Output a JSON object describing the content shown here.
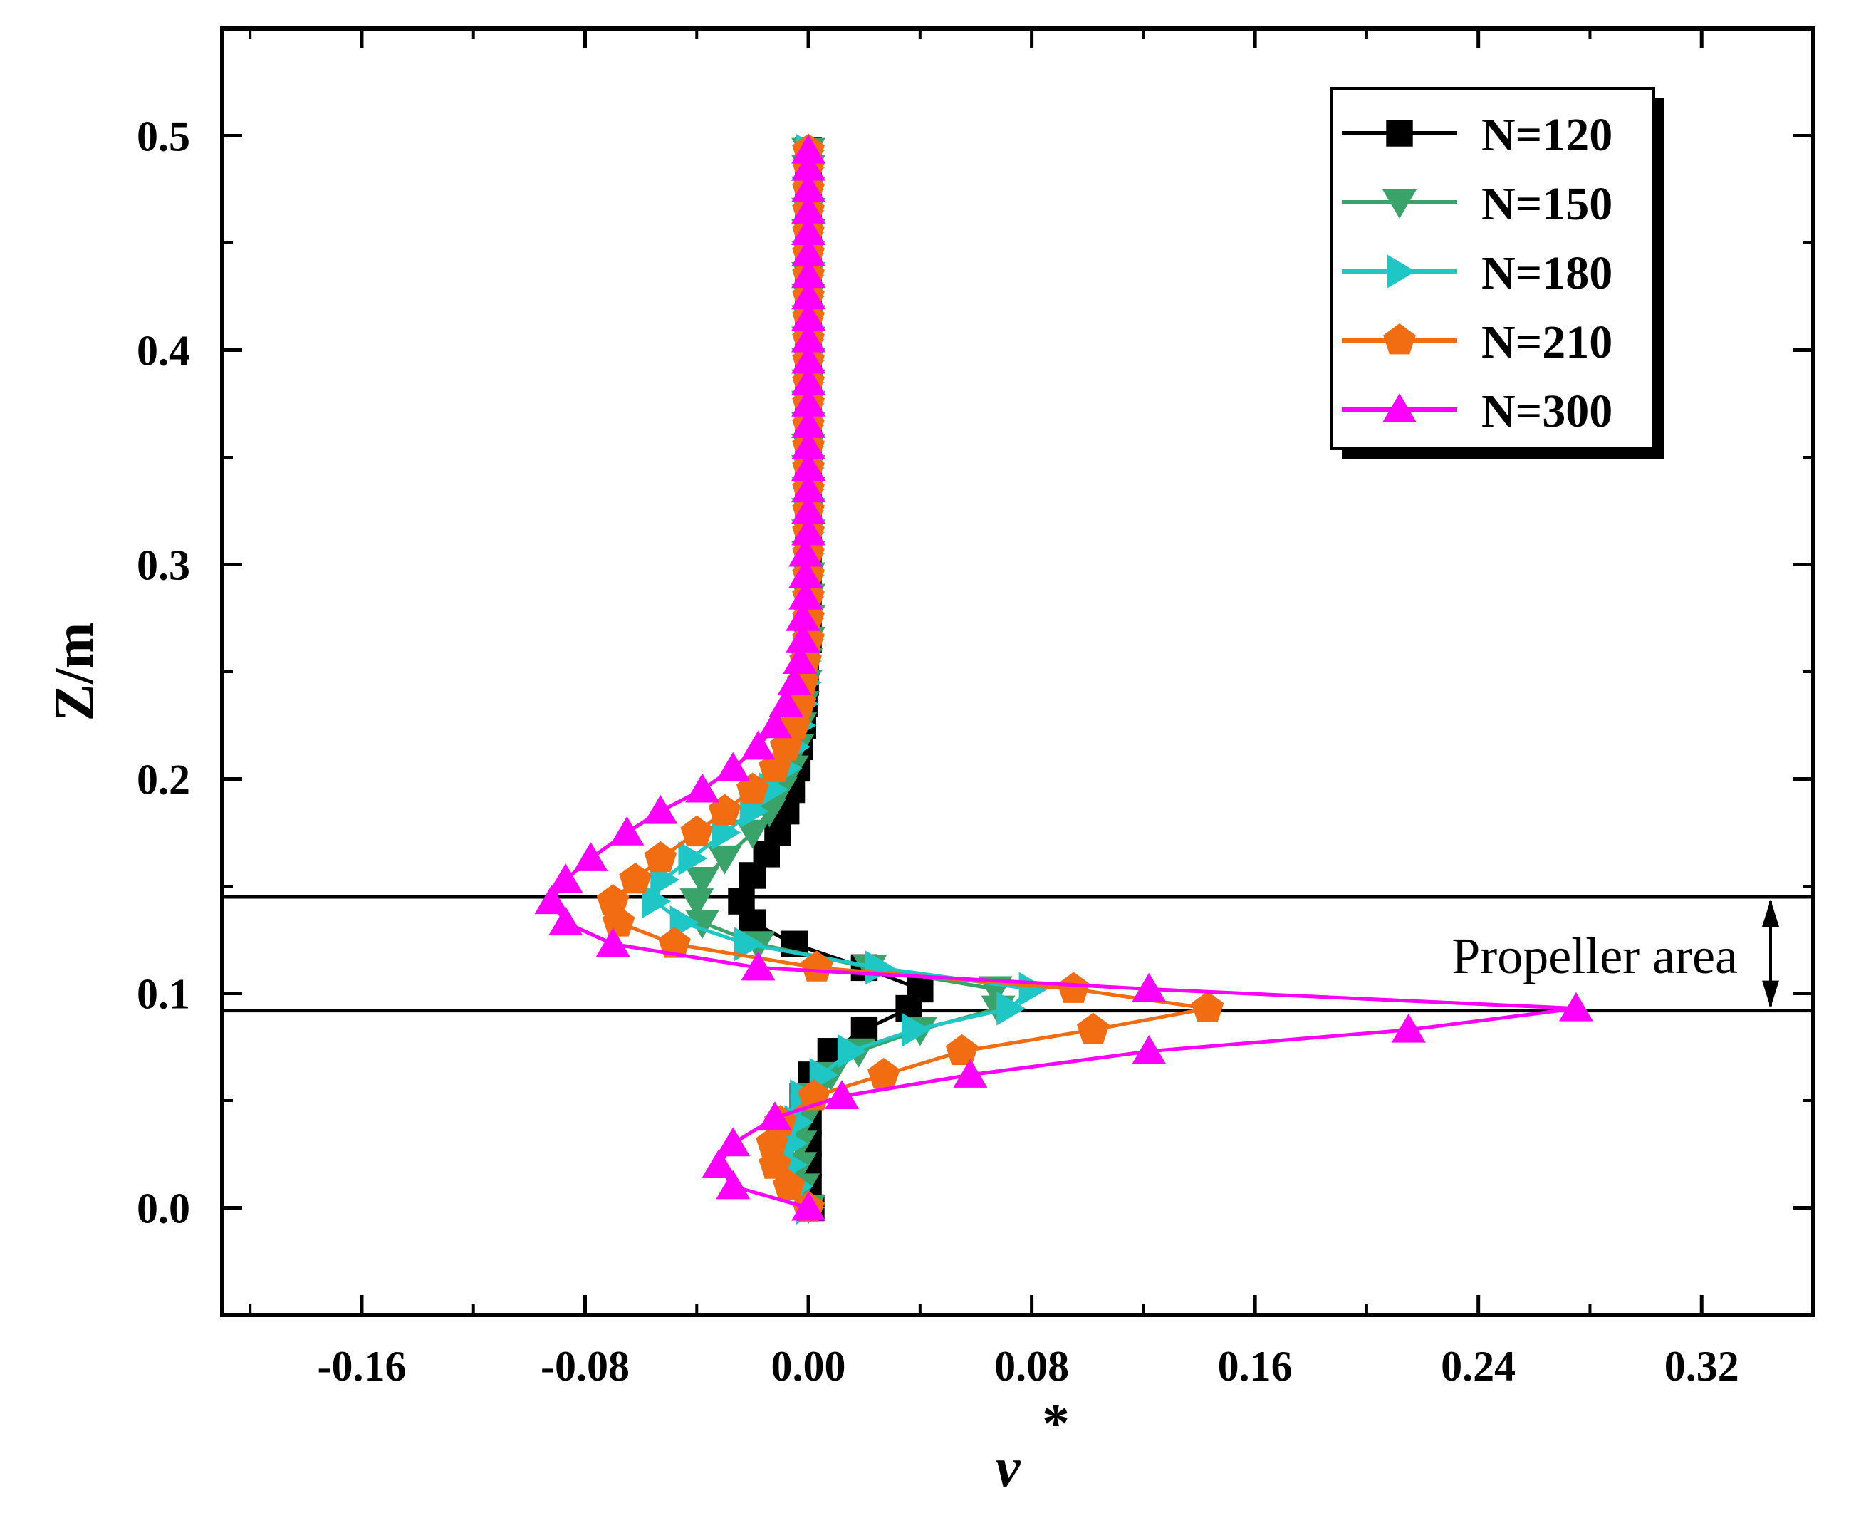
{
  "chart_data": {
    "type": "line",
    "title": "",
    "xlabel": "ν",
    "xlabel_superscript": "*",
    "ylabel": "Z/m",
    "xlim": [
      -0.21,
      0.36
    ],
    "ylim": [
      -0.05,
      0.55
    ],
    "xticks": [
      -0.16,
      -0.08,
      0.0,
      0.08,
      0.16,
      0.24,
      0.32
    ],
    "xtick_labels": [
      "-0.16",
      "-0.08",
      "0.00",
      "0.08",
      "0.16",
      "0.24",
      "0.32"
    ],
    "yticks": [
      0.0,
      0.1,
      0.2,
      0.3,
      0.4,
      0.5
    ],
    "ytick_labels": [
      "0.0",
      "0.1",
      "0.2",
      "0.3",
      "0.4",
      "0.5"
    ],
    "grid": false,
    "legend_position": "top-right",
    "annotation": {
      "label": "Propeller area",
      "z_top": 0.145,
      "z_bottom": 0.092
    },
    "series": [
      {
        "name": "N=120",
        "color": "#000000",
        "marker": "square",
        "points": [
          [
            0.001,
            0.0
          ],
          [
            0.0,
            0.01
          ],
          [
            0.0,
            0.02
          ],
          [
            0.0,
            0.03
          ],
          [
            0.0,
            0.04
          ],
          [
            -0.002,
            0.052
          ],
          [
            0.001,
            0.062
          ],
          [
            0.008,
            0.073
          ],
          [
            0.02,
            0.083
          ],
          [
            0.036,
            0.093
          ],
          [
            0.04,
            0.102
          ],
          [
            0.02,
            0.112
          ],
          [
            -0.005,
            0.123
          ],
          [
            -0.02,
            0.133
          ],
          [
            -0.024,
            0.143
          ],
          [
            -0.02,
            0.155
          ],
          [
            -0.015,
            0.165
          ],
          [
            -0.011,
            0.175
          ],
          [
            -0.008,
            0.185
          ],
          [
            -0.006,
            0.195
          ],
          [
            -0.004,
            0.205
          ],
          [
            -0.003,
            0.215
          ],
          [
            -0.002,
            0.225
          ],
          [
            -0.0015,
            0.235
          ],
          [
            -0.001,
            0.245
          ],
          [
            -0.001,
            0.255
          ],
          [
            0.0,
            0.265
          ],
          [
            0.0,
            0.275
          ],
          [
            0.0,
            0.285
          ],
          [
            0.0,
            0.295
          ],
          [
            0.0,
            0.305
          ],
          [
            0.0,
            0.315
          ],
          [
            0.0,
            0.325
          ],
          [
            0.0,
            0.335
          ],
          [
            0.0,
            0.345
          ],
          [
            0.0,
            0.355
          ],
          [
            0.0,
            0.365
          ],
          [
            0.0,
            0.375
          ],
          [
            0.0,
            0.385
          ],
          [
            0.0,
            0.395
          ],
          [
            0.0,
            0.405
          ],
          [
            0.0,
            0.415
          ],
          [
            0.0,
            0.425
          ],
          [
            0.0,
            0.435
          ],
          [
            0.0,
            0.445
          ],
          [
            0.0,
            0.455
          ],
          [
            0.0,
            0.465
          ],
          [
            0.0,
            0.475
          ],
          [
            0.0,
            0.485
          ],
          [
            0.0,
            0.493
          ]
        ]
      },
      {
        "name": "N=150",
        "color": "#3aa36a",
        "marker": "triangle-down",
        "points": [
          [
            0.0,
            0.0
          ],
          [
            -0.002,
            0.01
          ],
          [
            -0.003,
            0.02
          ],
          [
            -0.003,
            0.03
          ],
          [
            -0.002,
            0.04
          ],
          [
            0.002,
            0.052
          ],
          [
            0.008,
            0.062
          ],
          [
            0.018,
            0.073
          ],
          [
            0.04,
            0.083
          ],
          [
            0.068,
            0.093
          ],
          [
            0.067,
            0.102
          ],
          [
            0.022,
            0.112
          ],
          [
            -0.018,
            0.123
          ],
          [
            -0.038,
            0.133
          ],
          [
            -0.04,
            0.143
          ],
          [
            -0.038,
            0.153
          ],
          [
            -0.03,
            0.163
          ],
          [
            -0.02,
            0.175
          ],
          [
            -0.014,
            0.185
          ],
          [
            -0.01,
            0.195
          ],
          [
            -0.006,
            0.205
          ],
          [
            -0.004,
            0.215
          ],
          [
            -0.003,
            0.225
          ],
          [
            -0.002,
            0.235
          ],
          [
            -0.001,
            0.245
          ],
          [
            -0.001,
            0.255
          ],
          [
            0.0,
            0.265
          ],
          [
            0.0,
            0.275
          ],
          [
            0.0,
            0.285
          ],
          [
            0.0,
            0.295
          ],
          [
            0.0,
            0.305
          ],
          [
            0.0,
            0.315
          ],
          [
            0.0,
            0.325
          ],
          [
            0.0,
            0.335
          ],
          [
            0.0,
            0.345
          ],
          [
            0.0,
            0.355
          ],
          [
            0.0,
            0.365
          ],
          [
            0.0,
            0.375
          ],
          [
            0.0,
            0.385
          ],
          [
            0.0,
            0.395
          ],
          [
            0.0,
            0.405
          ],
          [
            0.0,
            0.415
          ],
          [
            0.0,
            0.425
          ],
          [
            0.0,
            0.435
          ],
          [
            0.0,
            0.445
          ],
          [
            0.0,
            0.455
          ],
          [
            0.0,
            0.465
          ],
          [
            0.0,
            0.475
          ],
          [
            0.0,
            0.485
          ],
          [
            0.0,
            0.493
          ]
        ]
      },
      {
        "name": "N=180",
        "color": "#1fc6c6",
        "marker": "triangle-right",
        "points": [
          [
            0.0,
            0.0
          ],
          [
            -0.004,
            0.01
          ],
          [
            -0.006,
            0.02
          ],
          [
            -0.006,
            0.03
          ],
          [
            -0.004,
            0.04
          ],
          [
            -0.002,
            0.052
          ],
          [
            0.005,
            0.062
          ],
          [
            0.015,
            0.073
          ],
          [
            0.038,
            0.083
          ],
          [
            0.072,
            0.093
          ],
          [
            0.08,
            0.102
          ],
          [
            0.025,
            0.112
          ],
          [
            -0.022,
            0.123
          ],
          [
            -0.045,
            0.133
          ],
          [
            -0.055,
            0.143
          ],
          [
            -0.052,
            0.153
          ],
          [
            -0.042,
            0.163
          ],
          [
            -0.03,
            0.175
          ],
          [
            -0.02,
            0.185
          ],
          [
            -0.013,
            0.195
          ],
          [
            -0.008,
            0.205
          ],
          [
            -0.005,
            0.215
          ],
          [
            -0.003,
            0.225
          ],
          [
            -0.002,
            0.235
          ],
          [
            -0.001,
            0.245
          ],
          [
            -0.001,
            0.255
          ],
          [
            0.0,
            0.265
          ],
          [
            0.0,
            0.275
          ],
          [
            0.0,
            0.285
          ],
          [
            0.0,
            0.295
          ],
          [
            0.0,
            0.305
          ],
          [
            0.0,
            0.315
          ],
          [
            0.0,
            0.325
          ],
          [
            0.0,
            0.335
          ],
          [
            0.0,
            0.345
          ],
          [
            0.0,
            0.355
          ],
          [
            0.0,
            0.365
          ],
          [
            0.0,
            0.375
          ],
          [
            0.0,
            0.385
          ],
          [
            0.0,
            0.395
          ],
          [
            0.0,
            0.405
          ],
          [
            0.0,
            0.415
          ],
          [
            0.0,
            0.425
          ],
          [
            0.0,
            0.435
          ],
          [
            0.0,
            0.445
          ],
          [
            0.0,
            0.455
          ],
          [
            0.0,
            0.465
          ],
          [
            0.0,
            0.475
          ],
          [
            0.0,
            0.485
          ],
          [
            0.0,
            0.493
          ]
        ]
      },
      {
        "name": "N=210",
        "color": "#f26c12",
        "marker": "pentagon",
        "points": [
          [
            0.0,
            0.0
          ],
          [
            -0.007,
            0.01
          ],
          [
            -0.012,
            0.02
          ],
          [
            -0.013,
            0.03
          ],
          [
            -0.01,
            0.04
          ],
          [
            0.002,
            0.052
          ],
          [
            0.027,
            0.062
          ],
          [
            0.055,
            0.073
          ],
          [
            0.102,
            0.083
          ],
          [
            0.143,
            0.093
          ],
          [
            0.095,
            0.102
          ],
          [
            0.003,
            0.112
          ],
          [
            -0.048,
            0.123
          ],
          [
            -0.068,
            0.133
          ],
          [
            -0.07,
            0.143
          ],
          [
            -0.062,
            0.153
          ],
          [
            -0.053,
            0.163
          ],
          [
            -0.04,
            0.175
          ],
          [
            -0.03,
            0.185
          ],
          [
            -0.02,
            0.195
          ],
          [
            -0.012,
            0.205
          ],
          [
            -0.008,
            0.215
          ],
          [
            -0.005,
            0.225
          ],
          [
            -0.003,
            0.235
          ],
          [
            -0.002,
            0.245
          ],
          [
            -0.001,
            0.255
          ],
          [
            0.0,
            0.265
          ],
          [
            0.0,
            0.275
          ],
          [
            0.0,
            0.285
          ],
          [
            0.0,
            0.295
          ],
          [
            0.0,
            0.305
          ],
          [
            0.0,
            0.315
          ],
          [
            0.0,
            0.325
          ],
          [
            0.0,
            0.335
          ],
          [
            0.0,
            0.345
          ],
          [
            0.0,
            0.355
          ],
          [
            0.0,
            0.365
          ],
          [
            0.0,
            0.375
          ],
          [
            0.0,
            0.385
          ],
          [
            0.0,
            0.395
          ],
          [
            0.0,
            0.405
          ],
          [
            0.0,
            0.415
          ],
          [
            0.0,
            0.425
          ],
          [
            0.0,
            0.435
          ],
          [
            0.0,
            0.445
          ],
          [
            0.0,
            0.455
          ],
          [
            0.0,
            0.465
          ],
          [
            0.0,
            0.475
          ],
          [
            0.0,
            0.485
          ],
          [
            0.0,
            0.493
          ]
        ]
      },
      {
        "name": "N=300",
        "color": "#ff00ff",
        "marker": "triangle-up",
        "points": [
          [
            0.0,
            0.0
          ],
          [
            -0.027,
            0.01
          ],
          [
            -0.032,
            0.02
          ],
          [
            -0.027,
            0.03
          ],
          [
            -0.012,
            0.042
          ],
          [
            0.012,
            0.052
          ],
          [
            0.058,
            0.062
          ],
          [
            0.122,
            0.073
          ],
          [
            0.215,
            0.083
          ],
          [
            0.275,
            0.093
          ],
          [
            0.122,
            0.102
          ],
          [
            -0.018,
            0.112
          ],
          [
            -0.07,
            0.123
          ],
          [
            -0.087,
            0.133
          ],
          [
            -0.092,
            0.143
          ],
          [
            -0.087,
            0.153
          ],
          [
            -0.078,
            0.163
          ],
          [
            -0.065,
            0.175
          ],
          [
            -0.053,
            0.185
          ],
          [
            -0.038,
            0.195
          ],
          [
            -0.027,
            0.205
          ],
          [
            -0.018,
            0.215
          ],
          [
            -0.012,
            0.225
          ],
          [
            -0.008,
            0.235
          ],
          [
            -0.005,
            0.245
          ],
          [
            -0.003,
            0.255
          ],
          [
            -0.002,
            0.265
          ],
          [
            -0.002,
            0.275
          ],
          [
            -0.001,
            0.285
          ],
          [
            -0.001,
            0.295
          ],
          [
            -0.001,
            0.305
          ],
          [
            0.0,
            0.315
          ],
          [
            0.0,
            0.325
          ],
          [
            0.0,
            0.335
          ],
          [
            0.0,
            0.345
          ],
          [
            0.0,
            0.355
          ],
          [
            0.0,
            0.365
          ],
          [
            0.0,
            0.375
          ],
          [
            0.0,
            0.385
          ],
          [
            0.0,
            0.395
          ],
          [
            0.0,
            0.405
          ],
          [
            0.0,
            0.415
          ],
          [
            0.0,
            0.425
          ],
          [
            0.0,
            0.435
          ],
          [
            0.0,
            0.445
          ],
          [
            0.0,
            0.455
          ],
          [
            0.0,
            0.465
          ],
          [
            0.0,
            0.475
          ],
          [
            0.0,
            0.485
          ],
          [
            0.0,
            0.493
          ]
        ]
      }
    ]
  }
}
